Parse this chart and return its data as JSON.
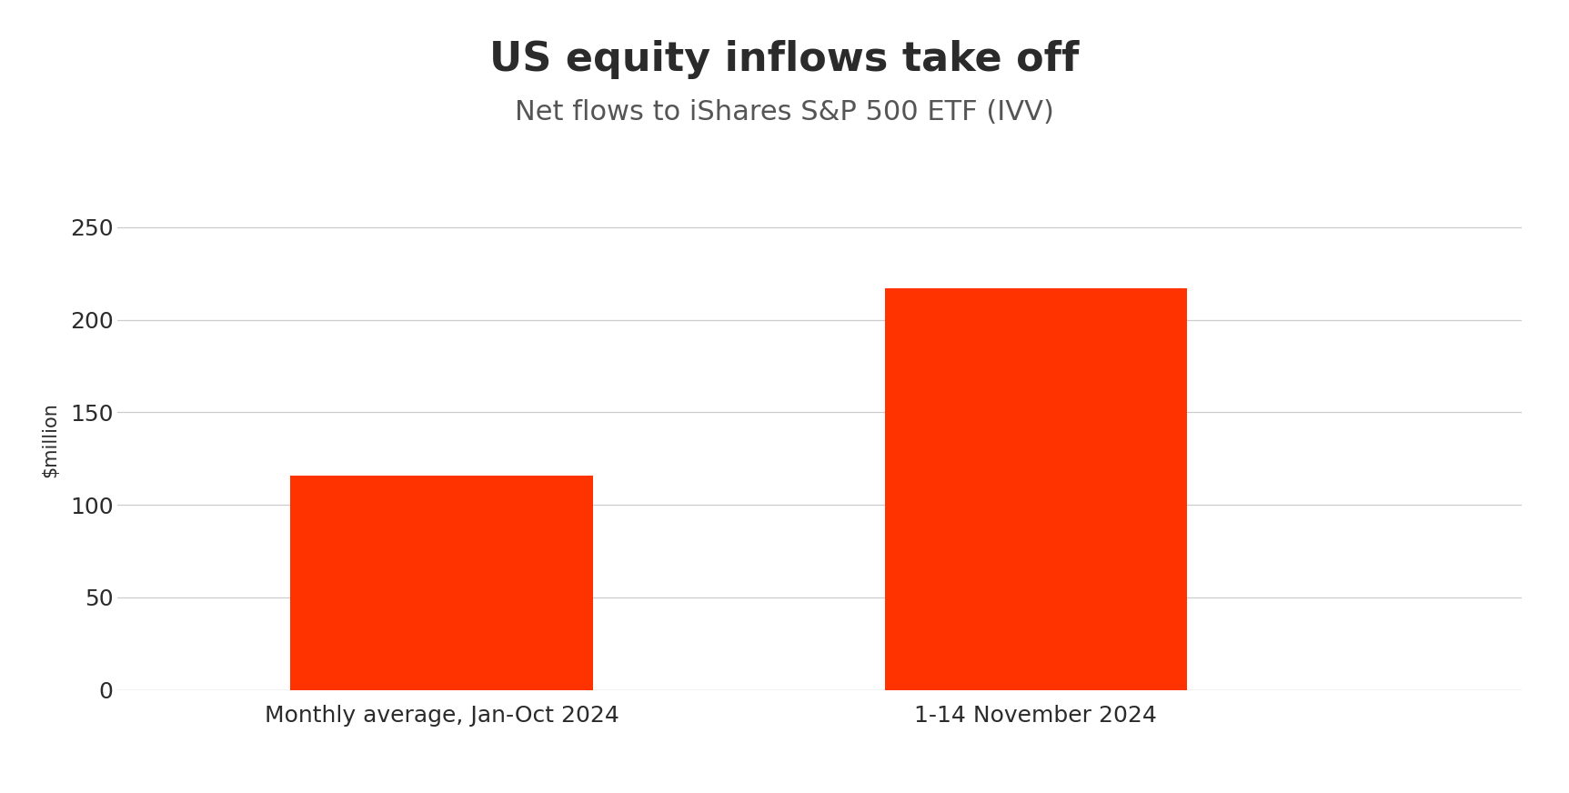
{
  "title": "US equity inflows take off",
  "subtitle": "Net flows to iShares S&P 500 ETF (IVV)",
  "categories": [
    "Monthly average, Jan-Oct 2024",
    "1-14 November 2024"
  ],
  "values": [
    116,
    217
  ],
  "bar_color": "#FF3300",
  "ylabel": "$million",
  "ylim": [
    0,
    270
  ],
  "yticks": [
    0,
    50,
    100,
    150,
    200,
    250
  ],
  "background_color": "#FFFFFF",
  "title_fontsize": 32,
  "subtitle_fontsize": 22,
  "ylabel_fontsize": 15,
  "tick_fontsize": 18,
  "xtick_fontsize": 18,
  "grid_color": "#CCCCCC",
  "title_color": "#2B2B2B",
  "subtitle_color": "#555555",
  "tick_label_color": "#2B2B2B",
  "bar_width": 0.28
}
